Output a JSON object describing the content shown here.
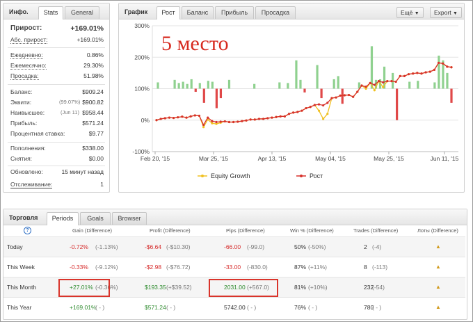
{
  "info": {
    "title": "Инфо.",
    "tabs": [
      "Stats",
      "General"
    ],
    "growth_label": "Прирост:",
    "growth_value": "+169.01%",
    "abs_growth_label": "Абс. прирост:",
    "abs_growth_value": "+169.01%",
    "daily_label": "Ежедневно:",
    "daily_value": "0.86%",
    "monthly_label": "Ежемесячно:",
    "monthly_value": "29.30%",
    "drawdown_label": "Просадка:",
    "drawdown_value": "51.98%",
    "balance_label": "Баланс:",
    "balance_value": "$909.24",
    "equity_label": "Эквити:",
    "equity_note": "(99.07%)",
    "equity_value": "$900.82",
    "highest_label": "Наивысшее:",
    "highest_note": "(Jun 11)",
    "highest_value": "$958.44",
    "profit_label": "Прибыль:",
    "profit_value": "$571.24",
    "interest_label": "Процентная ставка:",
    "interest_value": "$9.77",
    "deposits_label": "Пополнения:",
    "deposits_value": "$338.00",
    "withdrawals_label": "Снятия:",
    "withdrawals_value": "$0.00",
    "updated_label": "Обновлено:",
    "updated_value": "15 минут назад",
    "tracking_label": "Отслеживание:",
    "tracking_value": "1"
  },
  "chart_panel": {
    "title": "График",
    "tabs": [
      "Рост",
      "Баланс",
      "Прибыль",
      "Просадка"
    ],
    "btn_more": "Ещё",
    "btn_export": "Export",
    "overlay_text": "5 место",
    "legend": [
      "Equity Growth",
      "Рост"
    ]
  },
  "chart_data": {
    "type": "line",
    "y_ticks": [
      "300%",
      "200%",
      "100%",
      "0%",
      "-100%"
    ],
    "ylim": [
      -100,
      300
    ],
    "x_ticks": [
      "Feb 20, '15",
      "Mar 25, '15",
      "Apr 13, '15",
      "May 04, '15",
      "May 25, '15",
      "Jun 11, '15"
    ],
    "series": [
      {
        "name": "Рост",
        "values": [
          0,
          4,
          6,
          8,
          7,
          9,
          11,
          8,
          12,
          15,
          14,
          -15,
          8,
          -3,
          -6,
          -5,
          -4,
          -6,
          -6,
          -5,
          -3,
          -1,
          2,
          2,
          4,
          4,
          6,
          8,
          10,
          12,
          12,
          20,
          24,
          26,
          30,
          38,
          42,
          48,
          50,
          47,
          55,
          70,
          72,
          78,
          79,
          80,
          74,
          90,
          110,
          106,
          118,
          112,
          124,
          120,
          124,
          124,
          122,
          140,
          140,
          146,
          148,
          150,
          148,
          152,
          154,
          160,
          182,
          180,
          170,
          168
        ]
      },
      {
        "name": "Equity Growth",
        "values": [
          0,
          4,
          6,
          8,
          7,
          9,
          11,
          8,
          12,
          15,
          14,
          -22,
          2,
          -10,
          -12,
          -8,
          -4,
          -6,
          -6,
          -5,
          -3,
          -1,
          2,
          2,
          4,
          4,
          6,
          8,
          10,
          12,
          12,
          20,
          24,
          26,
          30,
          38,
          42,
          48,
          30,
          4,
          20,
          70,
          72,
          78,
          79,
          80,
          74,
          90,
          110,
          100,
          118,
          95,
          124,
          105,
          124,
          124,
          122,
          140,
          140,
          146,
          148,
          150,
          148,
          152,
          154,
          160,
          182,
          180,
          170,
          168
        ]
      }
    ],
    "bars": [
      20,
      0,
      0,
      0,
      28,
      18,
      22,
      15,
      30,
      -10,
      18,
      -45,
      25,
      22,
      -62,
      -30,
      0,
      28,
      0,
      0,
      0,
      0,
      0,
      15,
      0,
      0,
      0,
      0,
      0,
      20,
      0,
      18,
      0,
      90,
      28,
      -12,
      0,
      0,
      75,
      -30,
      0,
      0,
      30,
      40,
      -48,
      0,
      0,
      0,
      20,
      0,
      0,
      135,
      28,
      30,
      70,
      0,
      50,
      -100,
      0,
      0,
      22,
      0,
      25,
      0,
      0,
      0,
      20,
      105,
      90,
      50,
      -45
    ]
  },
  "trading": {
    "title": "Торговля",
    "tabs": [
      "Periods",
      "Goals",
      "Browser"
    ],
    "headers": [
      "Gain (Difference)",
      "Profit (Difference)",
      "Pips (Difference)",
      "Win % (Difference)",
      "Trades (Difference)",
      "Лоты (Difference)"
    ],
    "rows": [
      {
        "period": "Today",
        "gain": "-0.72%",
        "gain_diff": "(-1.13%)",
        "profit": "-$6.64",
        "profit_diff": "(-$10.30)",
        "pips": "-66.00",
        "pips_diff": "(-99.0)",
        "win": "50%",
        "win_diff": "(-50%)",
        "trades": "2",
        "trades_diff": "(-4)",
        "lots": "▲"
      },
      {
        "period": "This Week",
        "gain": "-0.33%",
        "gain_diff": "(-9.12%)",
        "profit": "-$2.98",
        "profit_diff": "(-$76.72)",
        "pips": "-33.00",
        "pips_diff": "(-830.0)",
        "win": "87%",
        "win_diff": "(+11%)",
        "trades": "8",
        "trades_diff": "(-113)",
        "lots": "▲"
      },
      {
        "period": "This Month",
        "gain": "+27.01%",
        "gain_diff": "(-0.36%)",
        "profit": "$193.35",
        "profit_diff": "(+$39.52)",
        "pips": "2031.00",
        "pips_diff": "(+567.0)",
        "win": "81%",
        "win_diff": "(+10%)",
        "trades": "232",
        "trades_diff": "(-54)",
        "lots": "▲"
      },
      {
        "period": "This Year",
        "gain": "+169.01%",
        "gain_diff": "( - )",
        "profit": "$571.24",
        "profit_diff": "( - )",
        "pips": "5742.00",
        "pips_diff": "( - )",
        "win": "76%",
        "win_diff": "( - )",
        "trades": "780",
        "trades_diff": "( - )",
        "lots": "▲"
      }
    ]
  },
  "colors": {
    "green": "#2e8b2e",
    "red": "#d62a2a",
    "bar_green": "#8fd18f",
    "bar_red": "#e04848",
    "line_red": "#d7312b",
    "line_yellow": "#f0c020"
  }
}
